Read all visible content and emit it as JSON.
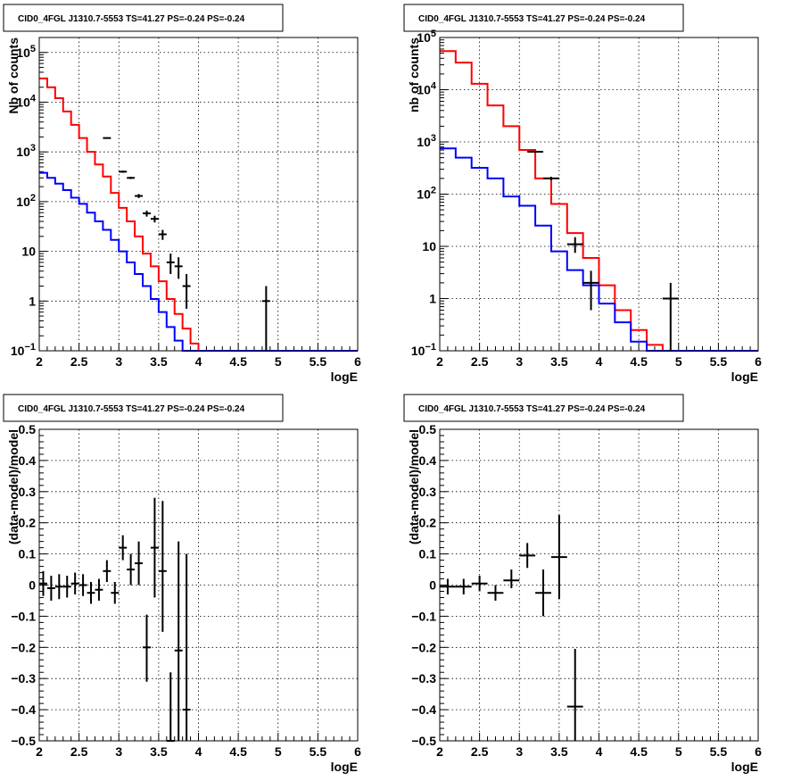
{
  "chart_data": [
    {
      "id": "top-left",
      "type": "line",
      "title": "CID0_4FGL J1310.7-5553 TS=41.27 PS=-0.24 PS=-0.24",
      "xlabel": "logE",
      "ylabel": "Nb of counts",
      "xlim": [
        2,
        6
      ],
      "ylim": [
        0.1,
        200000
      ],
      "yscale": "log",
      "grid": true,
      "x_ticks": [
        "2",
        "2.5",
        "3",
        "3.5",
        "4",
        "4.5",
        "5",
        "5.5",
        "6"
      ],
      "y_ticks": [
        {
          "value": 0.1,
          "base": "10",
          "exp": "−1"
        },
        {
          "value": 1,
          "label": "1"
        },
        {
          "value": 10,
          "label": "10"
        },
        {
          "value": 100,
          "base": "10",
          "exp": "2"
        },
        {
          "value": 1000,
          "base": "10",
          "exp": "3"
        },
        {
          "value": 10000,
          "base": "10",
          "exp": "4"
        },
        {
          "value": 100000,
          "base": "10",
          "exp": "5"
        }
      ],
      "bin_width": 0.1,
      "series": [
        {
          "style": "step",
          "color": "#ff0000",
          "bin_start": 2.0,
          "values": [
            30000,
            20000,
            12000,
            6500,
            3500,
            1900,
            1000,
            560,
            320,
            150,
            75,
            40,
            20,
            9,
            5,
            2.5,
            1.1,
            0.55,
            0.28,
            0.14,
            0.1,
            0.1,
            0.1,
            0.1,
            0.1,
            0.1,
            0.1,
            0.1,
            0.1,
            0.1,
            0.1,
            0.1,
            0.1,
            0.1,
            0.1,
            0.1,
            0.1,
            0.1,
            0.1,
            0.1
          ]
        },
        {
          "style": "step",
          "color": "#0000ff",
          "bin_start": 2.0,
          "values": [
            380,
            300,
            230,
            170,
            120,
            90,
            60,
            40,
            27,
            17,
            10,
            6,
            3.5,
            2,
            1.1,
            0.6,
            0.3,
            0.16,
            0.1,
            0.1,
            0.1,
            0.1,
            0.1,
            0.1,
            0.1,
            0.1,
            0.1,
            0.1,
            0.1,
            0.1,
            0.1,
            0.1,
            0.1,
            0.1,
            0.1,
            0.1,
            0.1,
            0.1,
            0.1,
            0.1
          ]
        },
        {
          "style": "points",
          "color": "#000000",
          "points": [
            {
              "x": 2.85,
              "y": 1900,
              "lo": 1850,
              "hi": 1950
            },
            {
              "x": 3.05,
              "y": 400,
              "lo": 380,
              "hi": 420
            },
            {
              "x": 3.15,
              "y": 300,
              "lo": 285,
              "hi": 315
            },
            {
              "x": 3.25,
              "y": 130,
              "lo": 118,
              "hi": 142
            },
            {
              "x": 3.35,
              "y": 58,
              "lo": 50,
              "hi": 66
            },
            {
              "x": 3.45,
              "y": 45,
              "lo": 38,
              "hi": 52
            },
            {
              "x": 3.55,
              "y": 22,
              "lo": 17,
              "hi": 27
            },
            {
              "x": 3.65,
              "y": 6,
              "lo": 3.5,
              "hi": 9
            },
            {
              "x": 3.75,
              "y": 5,
              "lo": 2.8,
              "hi": 7.6
            },
            {
              "x": 3.85,
              "y": 2,
              "lo": 0.7,
              "hi": 3.5
            },
            {
              "x": 4.85,
              "y": 1,
              "lo": 0.1,
              "hi": 2.0
            }
          ]
        }
      ]
    },
    {
      "id": "top-right",
      "type": "line",
      "title": "CID0_4FGL J1310.7-5553 TS=41.27 PS=-0.24 PS=-0.24",
      "xlabel": "logE",
      "ylabel": "nb of counts",
      "xlim": [
        2,
        6
      ],
      "ylim": [
        0.1,
        100000
      ],
      "yscale": "log",
      "grid": true,
      "x_ticks": [
        "2",
        "2.5",
        "3",
        "3.5",
        "4",
        "4.5",
        "5",
        "5.5",
        "6"
      ],
      "y_ticks": [
        {
          "value": 0.1,
          "base": "10",
          "exp": "−1"
        },
        {
          "value": 1,
          "label": "1"
        },
        {
          "value": 10,
          "label": "10"
        },
        {
          "value": 100,
          "base": "10",
          "exp": "2"
        },
        {
          "value": 1000,
          "base": "10",
          "exp": "3"
        },
        {
          "value": 10000,
          "base": "10",
          "exp": "4"
        },
        {
          "value": 100000,
          "base": "10",
          "exp": "5"
        }
      ],
      "bin_width": 0.2,
      "series": [
        {
          "style": "step",
          "color": "#ff0000",
          "bin_start": 2.0,
          "values": [
            55000,
            33000,
            13000,
            5000,
            2000,
            700,
            200,
            65,
            18,
            6,
            1.8,
            0.6,
            0.25,
            0.13,
            0.1,
            0.1,
            0.1,
            0.1,
            0.1,
            0.1
          ]
        },
        {
          "style": "step",
          "color": "#0000ff",
          "bin_start": 2.0,
          "values": [
            750,
            500,
            320,
            200,
            90,
            60,
            25,
            8,
            3.5,
            1.8,
            0.8,
            0.35,
            0.15,
            0.1,
            0.1,
            0.1,
            0.1,
            0.1,
            0.1,
            0.1
          ]
        },
        {
          "style": "points",
          "color": "#000000",
          "points": [
            {
              "x": 3.2,
              "y": 650,
              "lo": 620,
              "hi": 680
            },
            {
              "x": 3.4,
              "y": 200,
              "lo": 185,
              "hi": 215
            },
            {
              "x": 3.7,
              "y": 11,
              "lo": 7.5,
              "hi": 15
            },
            {
              "x": 3.9,
              "y": 2,
              "lo": 0.6,
              "hi": 3.4
            },
            {
              "x": 4.9,
              "y": 1,
              "lo": 0.1,
              "hi": 2.0
            }
          ]
        }
      ]
    },
    {
      "id": "bottom-left",
      "type": "scatter",
      "title": "CID0_4FGL J1310.7-5553 TS=41.27 PS=-0.24 PS=-0.24",
      "xlabel": "logE",
      "ylabel": "(data-model)/model",
      "xlim": [
        2,
        6
      ],
      "ylim": [
        -0.5,
        0.5
      ],
      "yscale": "linear",
      "grid": true,
      "x_ticks": [
        "2",
        "2.5",
        "3",
        "3.5",
        "4",
        "4.5",
        "5",
        "5.5",
        "6"
      ],
      "y_ticks": [
        {
          "value": -0.5,
          "label": "−0.5"
        },
        {
          "value": -0.4,
          "label": "−0.4"
        },
        {
          "value": -0.3,
          "label": "−0.3"
        },
        {
          "value": -0.2,
          "label": "−0.2"
        },
        {
          "value": -0.1,
          "label": "−0.1"
        },
        {
          "value": 0,
          "label": "0"
        },
        {
          "value": 0.1,
          "label": "0.1"
        },
        {
          "value": 0.2,
          "label": "0.2"
        },
        {
          "value": 0.3,
          "label": "0.3"
        },
        {
          "value": 0.4,
          "label": "0.4"
        },
        {
          "value": 0.5,
          "label": "0.5"
        }
      ],
      "bin_width": 0.1,
      "series": [
        {
          "style": "points",
          "color": "#000000",
          "points": [
            {
              "x": 2.05,
              "y": 0.005,
              "lo": -0.035,
              "hi": 0.045
            },
            {
              "x": 2.15,
              "y": -0.01,
              "lo": -0.05,
              "hi": 0.03
            },
            {
              "x": 2.25,
              "y": -0.005,
              "lo": -0.045,
              "hi": 0.035
            },
            {
              "x": 2.35,
              "y": -0.005,
              "lo": -0.04,
              "hi": 0.03
            },
            {
              "x": 2.45,
              "y": 0.005,
              "lo": -0.03,
              "hi": 0.04
            },
            {
              "x": 2.55,
              "y": 0.0,
              "lo": -0.035,
              "hi": 0.035
            },
            {
              "x": 2.65,
              "y": -0.025,
              "lo": -0.06,
              "hi": 0.01
            },
            {
              "x": 2.75,
              "y": -0.015,
              "lo": -0.05,
              "hi": 0.02
            },
            {
              "x": 2.85,
              "y": 0.045,
              "lo": 0.01,
              "hi": 0.08
            },
            {
              "x": 2.95,
              "y": -0.025,
              "lo": -0.06,
              "hi": 0.01
            },
            {
              "x": 3.05,
              "y": 0.12,
              "lo": 0.08,
              "hi": 0.16
            },
            {
              "x": 3.15,
              "y": 0.05,
              "lo": 0.0,
              "hi": 0.1
            },
            {
              "x": 3.25,
              "y": 0.07,
              "lo": 0.0,
              "hi": 0.14
            },
            {
              "x": 3.35,
              "y": -0.2,
              "lo": -0.31,
              "hi": -0.095
            },
            {
              "x": 3.45,
              "y": 0.12,
              "lo": -0.04,
              "hi": 0.28
            },
            {
              "x": 3.55,
              "y": 0.045,
              "lo": -0.15,
              "hi": 0.27
            },
            {
              "x": 3.65,
              "y": -0.5,
              "lo": -0.5,
              "hi": -0.28
            },
            {
              "x": 3.75,
              "y": -0.21,
              "lo": -0.5,
              "hi": 0.14
            },
            {
              "x": 3.85,
              "y": -0.4,
              "lo": -0.5,
              "hi": 0.1
            }
          ]
        }
      ]
    },
    {
      "id": "bottom-right",
      "type": "scatter",
      "title": "CID0_4FGL J1310.7-5553 TS=41.27 PS=-0.24 PS=-0.24",
      "xlabel": "logE",
      "ylabel": "(data-model)/model",
      "xlim": [
        2,
        6
      ],
      "ylim": [
        -0.5,
        0.5
      ],
      "yscale": "linear",
      "grid": true,
      "x_ticks": [
        "2",
        "2.5",
        "3",
        "3.5",
        "4",
        "4.5",
        "5",
        "5.5",
        "6"
      ],
      "y_ticks": [
        {
          "value": -0.5,
          "label": "−0.5"
        },
        {
          "value": -0.4,
          "label": "−0.4"
        },
        {
          "value": -0.3,
          "label": "−0.3"
        },
        {
          "value": -0.2,
          "label": "−0.2"
        },
        {
          "value": -0.1,
          "label": "−0.1"
        },
        {
          "value": 0,
          "label": "0"
        },
        {
          "value": 0.1,
          "label": "0.1"
        },
        {
          "value": 0.2,
          "label": "0.2"
        },
        {
          "value": 0.3,
          "label": "0.3"
        },
        {
          "value": 0.4,
          "label": "0.4"
        },
        {
          "value": 0.5,
          "label": "0.5"
        }
      ],
      "bin_width": 0.2,
      "series": [
        {
          "style": "points",
          "color": "#000000",
          "points": [
            {
              "x": 2.1,
              "y": -0.005,
              "lo": -0.03,
              "hi": 0.02
            },
            {
              "x": 2.3,
              "y": -0.005,
              "lo": -0.03,
              "hi": 0.02
            },
            {
              "x": 2.5,
              "y": 0.005,
              "lo": -0.02,
              "hi": 0.03
            },
            {
              "x": 2.7,
              "y": -0.025,
              "lo": -0.05,
              "hi": 0.0
            },
            {
              "x": 2.9,
              "y": 0.015,
              "lo": -0.01,
              "hi": 0.05
            },
            {
              "x": 3.1,
              "y": 0.095,
              "lo": 0.055,
              "hi": 0.135
            },
            {
              "x": 3.3,
              "y": -0.025,
              "lo": -0.1,
              "hi": 0.05
            },
            {
              "x": 3.5,
              "y": 0.09,
              "lo": -0.045,
              "hi": 0.225
            },
            {
              "x": 3.7,
              "y": -0.39,
              "lo": -0.5,
              "hi": -0.205
            }
          ]
        }
      ]
    }
  ]
}
